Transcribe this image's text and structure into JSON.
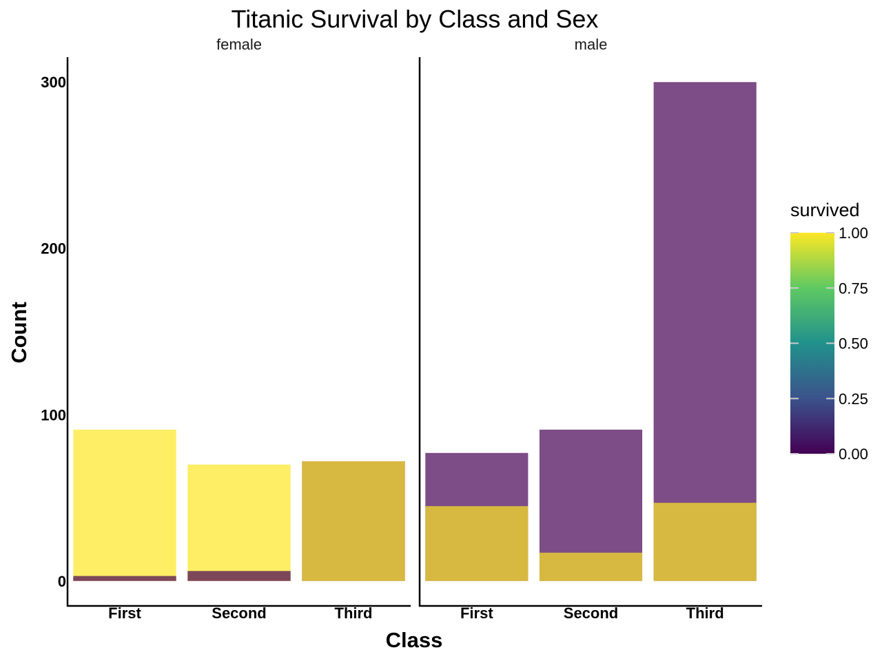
{
  "chart_data": {
    "type": "bar",
    "title": "Titanic Survival by Class and Sex",
    "xlabel": "Class",
    "ylabel": "Count",
    "ylim": [
      -15,
      315
    ],
    "yticks": [
      0,
      100,
      200,
      300
    ],
    "categories": [
      "First",
      "Second",
      "Third"
    ],
    "facets": [
      {
        "label": "female",
        "bars": [
          {
            "category": "First",
            "segments": [
              {
                "survived": 0,
                "count": 3
              },
              {
                "survived": 1,
                "count": 91
              }
            ]
          },
          {
            "category": "Second",
            "segments": [
              {
                "survived": 0,
                "count": 6
              },
              {
                "survived": 1,
                "count": 70
              }
            ]
          },
          {
            "category": "Third",
            "segments": [
              {
                "survived": 0,
                "count": 72
              },
              {
                "survived": 1,
                "count": 72
              }
            ]
          }
        ]
      },
      {
        "label": "male",
        "bars": [
          {
            "category": "First",
            "segments": [
              {
                "survived": 0,
                "count": 77
              },
              {
                "survived": 1,
                "count": 45
              }
            ]
          },
          {
            "category": "Second",
            "segments": [
              {
                "survived": 0,
                "count": 91
              },
              {
                "survived": 1,
                "count": 17
              }
            ]
          },
          {
            "category": "Third",
            "segments": [
              {
                "survived": 0,
                "count": 300
              },
              {
                "survived": 1,
                "count": 47
              }
            ]
          }
        ]
      }
    ],
    "legend": {
      "title": "survived",
      "type": "colorbar",
      "ticks": [
        "0.00",
        "0.25",
        "0.50",
        "0.75",
        "1.00"
      ],
      "placement": "right",
      "colors": [
        "#440154",
        "#3b528b",
        "#21918c",
        "#5ec962",
        "#fde725"
      ]
    },
    "bar_opacity": 0.7,
    "overlap_color": "#d4b840",
    "grid": false
  }
}
